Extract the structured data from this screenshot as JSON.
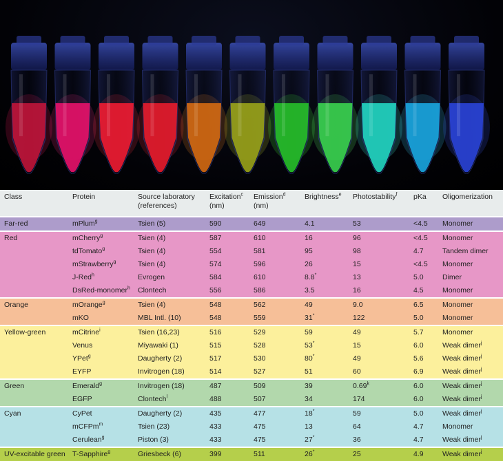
{
  "photo": {
    "tubes": [
      {
        "liquid": "#c0153a",
        "glow": "#ff1d5c"
      },
      {
        "liquid": "#e8126a",
        "glow": "#ff2a86"
      },
      {
        "liquid": "#f01c32",
        "glow": "#ff3344"
      },
      {
        "liquid": "#e81c2c",
        "glow": "#ff2a3a"
      },
      {
        "liquid": "#d56a12",
        "glow": "#ff8a20"
      },
      {
        "liquid": "#9aa31a",
        "glow": "#c9d02a"
      },
      {
        "liquid": "#27c02a",
        "glow": "#47ff36"
      },
      {
        "liquid": "#3ad34f",
        "glow": "#5cff6a"
      },
      {
        "liquid": "#22d6c2",
        "glow": "#44fff0"
      },
      {
        "liquid": "#1aa6e0",
        "glow": "#3cd4ff"
      },
      {
        "liquid": "#2a44d8",
        "glow": "#4060ff"
      }
    ]
  },
  "table": {
    "headers": {
      "class": "Class",
      "protein": "Protein",
      "source_l1": "Source laboratory",
      "source_l2": "(references)",
      "excitation": "Excitation",
      "excitation_sup": "c",
      "excitation_unit": "(nm)",
      "emission": "Emission",
      "emission_sup": "d",
      "emission_unit": "(nm)",
      "brightness": "Brightness",
      "brightness_sup": "e",
      "photostability": "Photostability",
      "photostability_sup": "f",
      "pka": "pKa",
      "oligomerization": "Oligomerization"
    },
    "rows": [
      {
        "group": "g-farred",
        "start": true,
        "class": "Far-red",
        "protein": "mPlum",
        "protein_sup": "g",
        "source": "Tsien (5)",
        "source_sup": "",
        "ex": "590",
        "em": "649",
        "bright": "4.1",
        "bright_sup": "",
        "photo": "53",
        "photo_sup": "",
        "pka": "<4.5",
        "olig": "Monomer",
        "olig_sup": ""
      },
      {
        "group": "g-red",
        "start": true,
        "class": "Red",
        "protein": "mCherry",
        "protein_sup": "g",
        "source": "Tsien (4)",
        "source_sup": "",
        "ex": "587",
        "em": "610",
        "bright": "16",
        "bright_sup": "",
        "photo": "96",
        "photo_sup": "",
        "pka": "<4.5",
        "olig": "Monomer",
        "olig_sup": ""
      },
      {
        "group": "g-red",
        "start": false,
        "class": "",
        "protein": "tdTomato",
        "protein_sup": "g",
        "source": "Tsien (4)",
        "source_sup": "",
        "ex": "554",
        "em": "581",
        "bright": "95",
        "bright_sup": "",
        "photo": "98",
        "photo_sup": "",
        "pka": "4.7",
        "olig": "Tandem dimer",
        "olig_sup": ""
      },
      {
        "group": "g-red",
        "start": false,
        "class": "",
        "protein": "mStrawberry",
        "protein_sup": "g",
        "source": "Tsien (4)",
        "source_sup": "",
        "ex": "574",
        "em": "596",
        "bright": "26",
        "bright_sup": "",
        "photo": "15",
        "photo_sup": "",
        "pka": "<4.5",
        "olig": "Monomer",
        "olig_sup": ""
      },
      {
        "group": "g-red",
        "start": false,
        "class": "",
        "protein": "J-Red",
        "protein_sup": "h",
        "source": "Evrogen",
        "source_sup": "",
        "ex": "584",
        "em": "610",
        "bright": "8.8",
        "bright_sup": "*",
        "photo": "13",
        "photo_sup": "",
        "pka": "5.0",
        "olig": "Dimer",
        "olig_sup": ""
      },
      {
        "group": "g-red",
        "start": false,
        "class": "",
        "protein": "DsRed-monomer",
        "protein_sup": "h",
        "source": "Clontech",
        "source_sup": "",
        "ex": "556",
        "em": "586",
        "bright": "3.5",
        "bright_sup": "",
        "photo": "16",
        "photo_sup": "",
        "pka": "4.5",
        "olig": "Monomer",
        "olig_sup": ""
      },
      {
        "group": "g-orange",
        "start": true,
        "class": "Orange",
        "protein": "mOrange",
        "protein_sup": "g",
        "source": "Tsien (4)",
        "source_sup": "",
        "ex": "548",
        "em": "562",
        "bright": "49",
        "bright_sup": "",
        "photo": "9.0",
        "photo_sup": "",
        "pka": "6.5",
        "olig": "Monomer",
        "olig_sup": ""
      },
      {
        "group": "g-orange",
        "start": false,
        "class": "",
        "protein": "mKO",
        "protein_sup": "",
        "source": "MBL Intl. (10)",
        "source_sup": "",
        "ex": "548",
        "em": "559",
        "bright": "31",
        "bright_sup": "*",
        "photo": "122",
        "photo_sup": "",
        "pka": "5.0",
        "olig": "Monomer",
        "olig_sup": ""
      },
      {
        "group": "g-yellow",
        "start": true,
        "class": "Yellow-green",
        "protein": "mCitrine",
        "protein_sup": "i",
        "source": "Tsien (16,23)",
        "source_sup": "",
        "ex": "516",
        "em": "529",
        "bright": "59",
        "bright_sup": "",
        "photo": "49",
        "photo_sup": "",
        "pka": "5.7",
        "olig": "Monomer",
        "olig_sup": ""
      },
      {
        "group": "g-yellow",
        "start": false,
        "class": "",
        "protein": "Venus",
        "protein_sup": "",
        "source": "Miyawaki (1)",
        "source_sup": "",
        "ex": "515",
        "em": "528",
        "bright": "53",
        "bright_sup": "*",
        "photo": "15",
        "photo_sup": "",
        "pka": "6.0",
        "olig": "Weak dimer",
        "olig_sup": "j"
      },
      {
        "group": "g-yellow",
        "start": false,
        "class": "",
        "protein": "YPet",
        "protein_sup": "g",
        "source": "Daugherty (2)",
        "source_sup": "",
        "ex": "517",
        "em": "530",
        "bright": "80",
        "bright_sup": "*",
        "photo": "49",
        "photo_sup": "",
        "pka": "5.6",
        "olig": "Weak dimer",
        "olig_sup": "j"
      },
      {
        "group": "g-yellow",
        "start": false,
        "class": "",
        "protein": "EYFP",
        "protein_sup": "",
        "source": "Invitrogen (18)",
        "source_sup": "",
        "ex": "514",
        "em": "527",
        "bright": "51",
        "bright_sup": "",
        "photo": "60",
        "photo_sup": "",
        "pka": "6.9",
        "olig": "Weak dimer",
        "olig_sup": "j"
      },
      {
        "group": "g-green",
        "start": true,
        "class": "Green",
        "protein": "Emerald",
        "protein_sup": "g",
        "source": "Invitrogen (18)",
        "source_sup": "",
        "ex": "487",
        "em": "509",
        "bright": "39",
        "bright_sup": "",
        "photo": "0.69",
        "photo_sup": "k",
        "pka": "6.0",
        "olig": "Weak dimer",
        "olig_sup": "j"
      },
      {
        "group": "g-green",
        "start": false,
        "class": "",
        "protein": "EGFP",
        "protein_sup": "",
        "source": "Clontech",
        "source_sup": "l",
        "ex": "488",
        "em": "507",
        "bright": "34",
        "bright_sup": "",
        "photo": "174",
        "photo_sup": "",
        "pka": "6.0",
        "olig": "Weak dimer",
        "olig_sup": "j"
      },
      {
        "group": "g-cyan",
        "start": true,
        "class": "Cyan",
        "protein": "CyPet",
        "protein_sup": "",
        "source": "Daugherty (2)",
        "source_sup": "",
        "ex": "435",
        "em": "477",
        "bright": "18",
        "bright_sup": "*",
        "photo": "59",
        "photo_sup": "",
        "pka": "5.0",
        "olig": "Weak dimer",
        "olig_sup": "j"
      },
      {
        "group": "g-cyan",
        "start": false,
        "class": "",
        "protein": "mCFPm",
        "protein_sup": "m",
        "source": "Tsien (23)",
        "source_sup": "",
        "ex": "433",
        "em": "475",
        "bright": "13",
        "bright_sup": "",
        "photo": "64",
        "photo_sup": "",
        "pka": "4.7",
        "olig": "Monomer",
        "olig_sup": ""
      },
      {
        "group": "g-cyan",
        "start": false,
        "class": "",
        "protein": "Cerulean",
        "protein_sup": "g",
        "source": "Piston (3)",
        "source_sup": "",
        "ex": "433",
        "em": "475",
        "bright": "27",
        "bright_sup": "*",
        "photo": "36",
        "photo_sup": "",
        "pka": "4.7",
        "olig": "Weak dimer",
        "olig_sup": "j"
      },
      {
        "group": "g-uv",
        "start": true,
        "class": "UV-excitable green",
        "protein": "T-Sapphire",
        "protein_sup": "g",
        "source": "Griesbeck (6)",
        "source_sup": "",
        "ex": "399",
        "em": "511",
        "bright": "26",
        "bright_sup": "*",
        "photo": "25",
        "photo_sup": "",
        "pka": "4.9",
        "olig": "Weak dimer",
        "olig_sup": "j"
      }
    ]
  }
}
